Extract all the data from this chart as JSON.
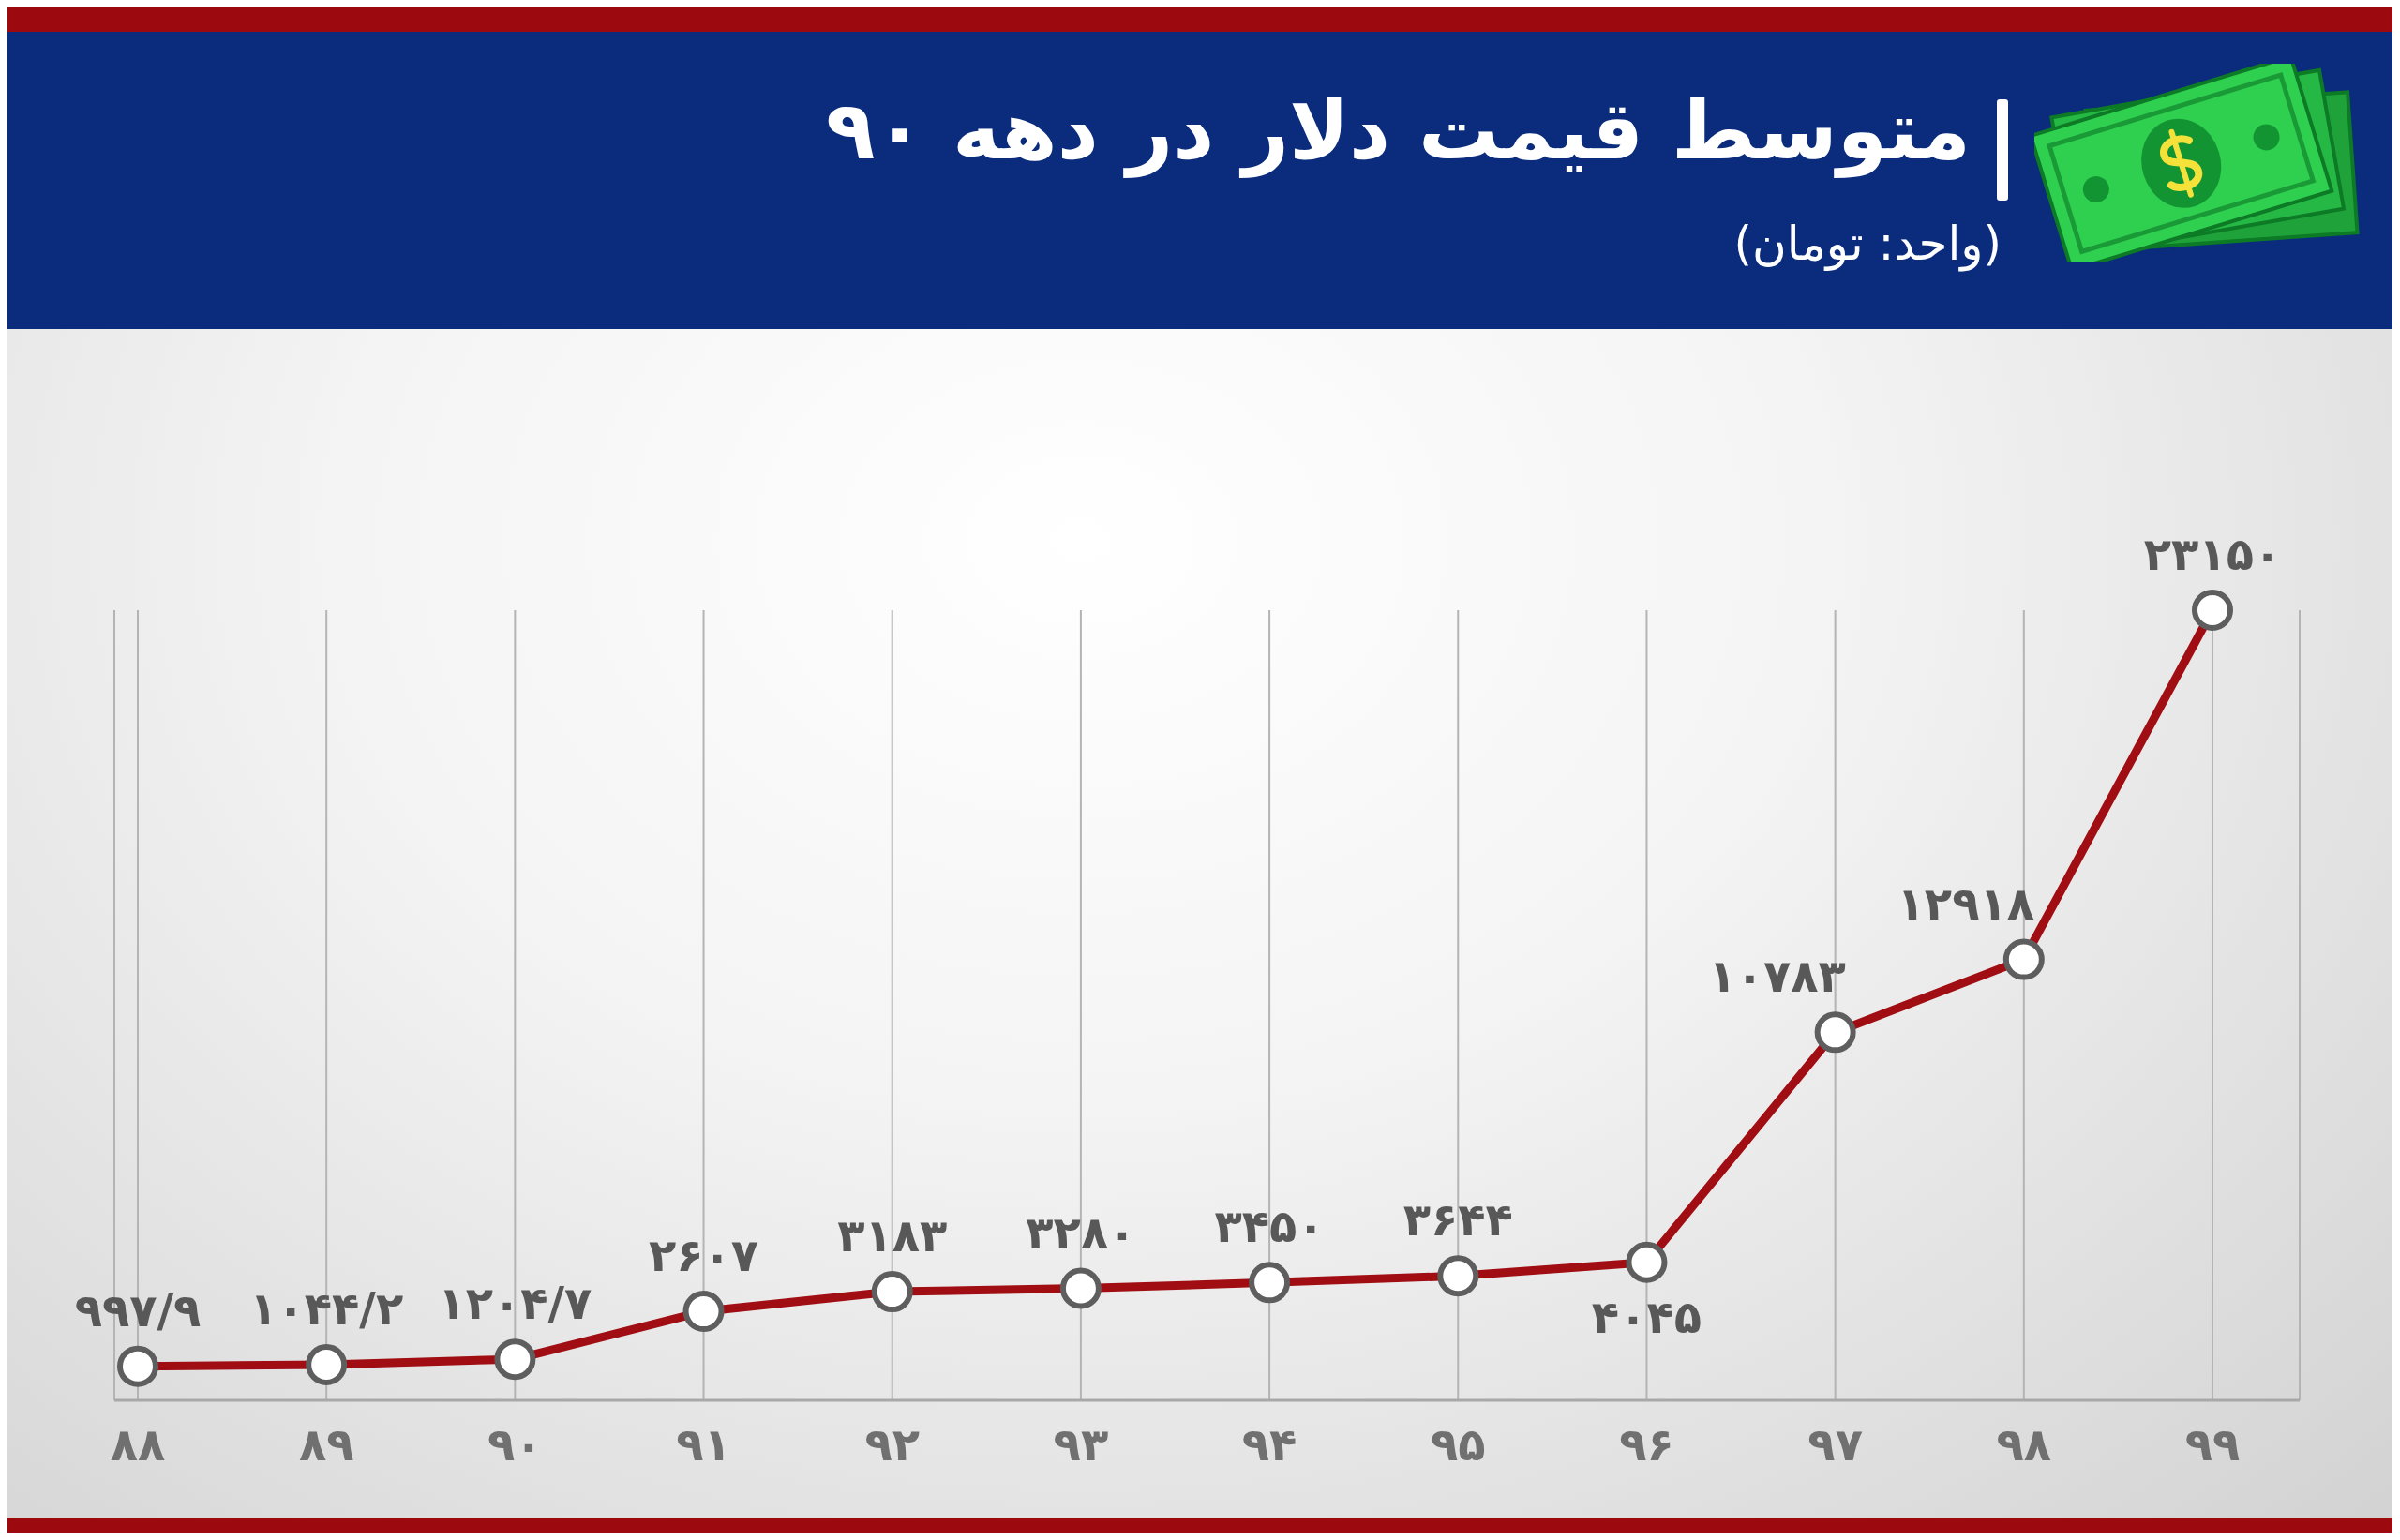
{
  "chart_data": {
    "type": "line",
    "title": "متوسط قیمت دلار در دهه ۹۰",
    "subtitle": "(واحد: تومان)",
    "categories": [
      "۸۸",
      "۸۹",
      "۹۰",
      "۹۱",
      "۹۲",
      "۹۳",
      "۹۴",
      "۹۵",
      "۹۶",
      "۹۷",
      "۹۸",
      "۹۹"
    ],
    "series": [
      {
        "color": "#a00d12",
        "values": [
          997.9,
          1044.2,
          1204.7,
          2607,
          3183,
          3280,
          3450,
          3644,
          4045,
          10783,
          12918,
          23150
        ],
        "value_labels": [
          "۹۹۷/۹",
          "۱۰۴۴/۲",
          "۱۲۰۴/۷",
          "۲۶۰۷",
          "۳۱۸۳",
          "۳۲۸۰",
          "۳۴۵۰",
          "۳۶۴۴",
          "۴۰۴۵",
          "۱۰۷۸۳",
          "۱۲۹۱۸",
          "۲۳۱۵۰"
        ]
      }
    ],
    "tick_labels": "x",
    "grid": "x",
    "marker": "circle",
    "line_style": "solid"
  }
}
